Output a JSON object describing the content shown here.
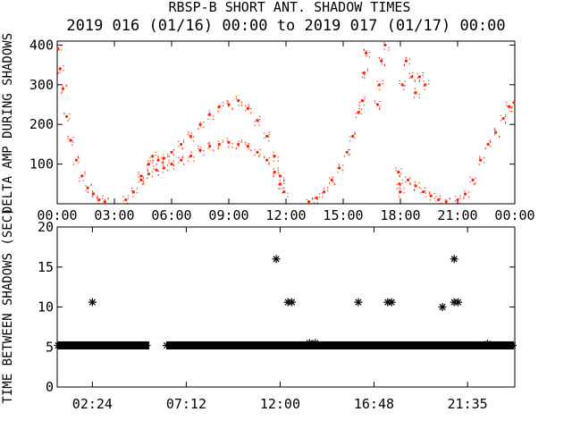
{
  "title": "RBSP-B SHORT ANT. SHADOW TIMES",
  "subtitle": "2019 016 (01/16) 00:00 to 2019 017 (01/17) 00:00",
  "colors": {
    "axes": "#000000",
    "top_series": "#ff2200",
    "background": "#ffffff"
  },
  "chart_data": [
    {
      "type": "scatter",
      "ylabel": "DELTA AMP DURING SHADOWS",
      "xlim": [
        0,
        24
      ],
      "ylim": [
        0,
        410
      ],
      "x_ticks": [
        0,
        3,
        6,
        9,
        12,
        15,
        18,
        21,
        24
      ],
      "x_tick_labels": [
        "00:00",
        "03:00",
        "06:00",
        "09:00",
        "12:00",
        "15:00",
        "18:00",
        "21:00",
        "00:00"
      ],
      "y_ticks": [
        100,
        200,
        300,
        400
      ],
      "y_tick_labels": [
        "100",
        "200",
        "300",
        "400"
      ],
      "grid": false,
      "series": [
        {
          "color": "#ff2200",
          "points": [
            [
              0.0,
              390
            ],
            [
              0.15,
              340
            ],
            [
              0.3,
              290
            ],
            [
              0.5,
              220
            ],
            [
              0.7,
              160
            ],
            [
              1.0,
              110
            ],
            [
              1.3,
              70
            ],
            [
              1.6,
              40
            ],
            [
              1.9,
              25
            ],
            [
              2.2,
              10
            ],
            [
              2.5,
              5
            ],
            [
              3.6,
              10
            ],
            [
              4.0,
              30
            ],
            [
              4.4,
              70
            ],
            [
              4.8,
              100
            ],
            [
              5.0,
              120
            ],
            [
              5.3,
              110
            ],
            [
              5.6,
              115
            ],
            [
              6.0,
              130
            ],
            [
              6.5,
              150
            ],
            [
              7.0,
              170
            ],
            [
              7.5,
              200
            ],
            [
              8.0,
              225
            ],
            [
              8.5,
              245
            ],
            [
              9.0,
              250
            ],
            [
              9.5,
              260
            ],
            [
              10.0,
              240
            ],
            [
              10.5,
              210
            ],
            [
              11.0,
              170
            ],
            [
              11.4,
              120
            ],
            [
              11.7,
              70
            ],
            [
              11.9,
              30
            ],
            [
              4.4,
              60
            ],
            [
              4.8,
              75
            ],
            [
              5.2,
              85
            ],
            [
              5.6,
              90
            ],
            [
              6.0,
              100
            ],
            [
              6.5,
              110
            ],
            [
              7.0,
              120
            ],
            [
              7.5,
              135
            ],
            [
              8.0,
              145
            ],
            [
              8.5,
              150
            ],
            [
              9.0,
              155
            ],
            [
              9.5,
              150
            ],
            [
              10.0,
              145
            ],
            [
              10.5,
              130
            ],
            [
              11.0,
              110
            ],
            [
              11.4,
              80
            ],
            [
              11.7,
              50
            ],
            [
              13.2,
              5
            ],
            [
              13.6,
              15
            ],
            [
              14.0,
              30
            ],
            [
              14.4,
              60
            ],
            [
              14.8,
              90
            ],
            [
              15.2,
              130
            ],
            [
              15.5,
              170
            ],
            [
              15.8,
              230
            ],
            [
              16.0,
              260
            ],
            [
              16.1,
              330
            ],
            [
              16.2,
              380
            ],
            [
              16.8,
              250
            ],
            [
              16.9,
              300
            ],
            [
              17.0,
              360
            ],
            [
              17.2,
              400
            ],
            [
              18.1,
              300
            ],
            [
              18.3,
              360
            ],
            [
              18.6,
              320
            ],
            [
              18.8,
              280
            ],
            [
              19.0,
              320
            ],
            [
              19.3,
              300
            ],
            [
              17.9,
              80
            ],
            [
              17.95,
              50
            ],
            [
              18.0,
              30
            ],
            [
              18.4,
              60
            ],
            [
              18.8,
              45
            ],
            [
              19.2,
              30
            ],
            [
              19.6,
              20
            ],
            [
              20.0,
              10
            ],
            [
              20.4,
              5
            ],
            [
              21.0,
              10
            ],
            [
              21.4,
              25
            ],
            [
              21.8,
              60
            ],
            [
              22.2,
              110
            ],
            [
              22.6,
              150
            ],
            [
              23.0,
              180
            ],
            [
              23.4,
              215
            ],
            [
              23.7,
              245
            ],
            [
              24.0,
              255
            ]
          ]
        }
      ]
    },
    {
      "type": "scatter",
      "ylabel": "TIME BETWEEN SHADOWS (SEC)",
      "xlim": [
        0.6,
        24
      ],
      "ylim": [
        0,
        20
      ],
      "x_ticks": [
        2.4,
        7.2,
        12.0,
        16.8,
        21.583
      ],
      "x_tick_labels": [
        "02:24",
        "07:12",
        "12:00",
        "16:48",
        "21:35"
      ],
      "y_ticks": [
        0,
        5,
        10,
        15,
        20
      ],
      "y_tick_labels": [
        "0",
        "5",
        "10",
        "15",
        "20"
      ],
      "grid": false,
      "marker": "asterisk",
      "series": [
        {
          "color": "#000000",
          "segments": [
            {
              "x_start": 0.6,
              "x_end": 5.3,
              "y": 5.2
            },
            {
              "x_start": 6.2,
              "x_end": 25.0,
              "y": 5.2
            }
          ],
          "points": [
            [
              2.4,
              10.6
            ],
            [
              11.8,
              16.0
            ],
            [
              11.8,
              5.2
            ],
            [
              12.4,
              10.6
            ],
            [
              12.6,
              10.6
            ],
            [
              16.0,
              10.6
            ],
            [
              17.5,
              10.6
            ],
            [
              17.7,
              10.6
            ],
            [
              20.3,
              10.0
            ],
            [
              20.9,
              16.0
            ],
            [
              20.9,
              10.6
            ],
            [
              21.1,
              10.6
            ],
            [
              20.9,
              5.2
            ],
            [
              13.5,
              5.5
            ],
            [
              13.8,
              5.5
            ],
            [
              22.6,
              5.4
            ]
          ]
        }
      ]
    }
  ]
}
